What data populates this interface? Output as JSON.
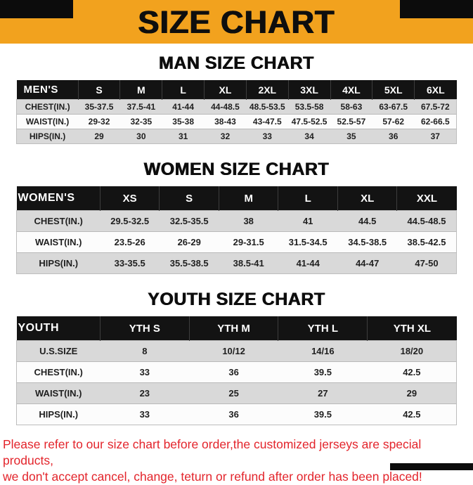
{
  "banner": {
    "title": "SIZE CHART",
    "background_color": "#F2A21E",
    "title_color": "#0e0e0e"
  },
  "colors": {
    "table_header_bg": "#131313",
    "table_header_text": "#ffffff",
    "row_gray": "#D9D9D9",
    "row_white": "#FCFCFC",
    "footer_text": "#E3242B"
  },
  "sections": [
    {
      "heading": "MAN SIZE CHART",
      "table": {
        "header": [
          "MEN'S",
          "S",
          "M",
          "L",
          "XL",
          "2XL",
          "3XL",
          "4XL",
          "5XL",
          "6XL"
        ],
        "rows": [
          {
            "label": "CHEST(IN.)",
            "values": [
              "35-37.5",
              "37.5-41",
              "41-44",
              "44-48.5",
              "48.5-53.5",
              "53.5-58",
              "58-63",
              "63-67.5",
              "67.5-72"
            ]
          },
          {
            "label": "WAIST(IN.)",
            "values": [
              "29-32",
              "32-35",
              "35-38",
              "38-43",
              "43-47.5",
              "47.5-52.5",
              "52.5-57",
              "57-62",
              "62-66.5"
            ]
          },
          {
            "label": "HIPS(IN.)",
            "values": [
              "29",
              "30",
              "31",
              "32",
              "33",
              "34",
              "35",
              "36",
              "37"
            ]
          }
        ]
      }
    },
    {
      "heading": "WOMEN SIZE CHART",
      "table": {
        "header": [
          "WOMEN'S",
          "XS",
          "S",
          "M",
          "L",
          "XL",
          "XXL"
        ],
        "rows": [
          {
            "label": "CHEST(IN.)",
            "values": [
              "29.5-32.5",
              "32.5-35.5",
              "38",
              "41",
              "44.5",
              "44.5-48.5"
            ]
          },
          {
            "label": "WAIST(IN.)",
            "values": [
              "23.5-26",
              "26-29",
              "29-31.5",
              "31.5-34.5",
              "34.5-38.5",
              "38.5-42.5"
            ]
          },
          {
            "label": "HIPS(IN.)",
            "values": [
              "33-35.5",
              "35.5-38.5",
              "38.5-41",
              "41-44",
              "44-47",
              "47-50"
            ]
          }
        ]
      }
    },
    {
      "heading": "YOUTH SIZE CHART",
      "table": {
        "header": [
          "YOUTH",
          "YTH S",
          "YTH M",
          "YTH L",
          "YTH XL"
        ],
        "rows": [
          {
            "label": "U.S.SIZE",
            "values": [
              "8",
              "10/12",
              "14/16",
              "18/20"
            ]
          },
          {
            "label": "CHEST(IN.)",
            "values": [
              "33",
              "36",
              "39.5",
              "42.5"
            ]
          },
          {
            "label": "WAIST(IN.)",
            "values": [
              "23",
              "25",
              "27",
              "29"
            ]
          },
          {
            "label": "HIPS(IN.)",
            "values": [
              "33",
              "36",
              "39.5",
              "42.5"
            ]
          }
        ]
      }
    }
  ],
  "footer": {
    "lines": [
      "Please refer to our size chart before order,the customized jerseys are special products,",
      "we don't accept cancel, change, teturn or refund after order has been placed!"
    ]
  }
}
